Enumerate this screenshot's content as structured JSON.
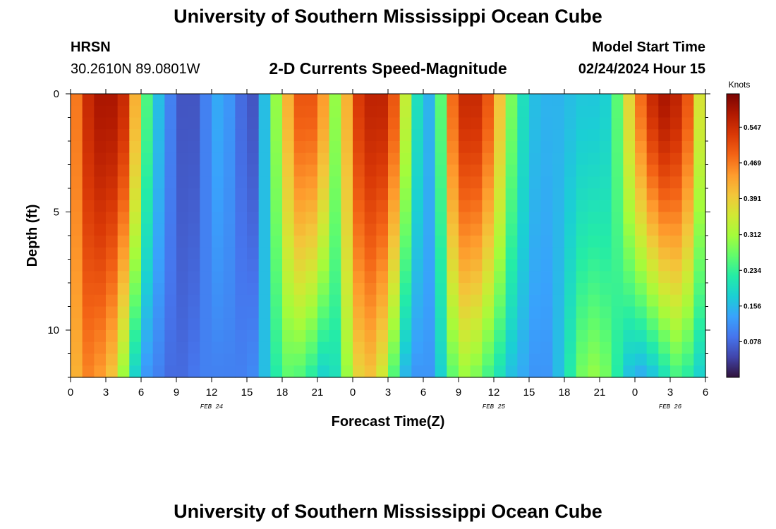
{
  "header": {
    "title": "University of Southern Mississippi Ocean Cube",
    "station": "HRSN",
    "coordinates": "30.2610N  89.0801W",
    "plot_title": "2-D Currents Speed-Magnitude",
    "model_label": "Model Start Time",
    "model_time": "02/24/2024 Hour 15"
  },
  "footer": {
    "title": "University of Southern Mississippi Ocean Cube"
  },
  "chart_data": {
    "type": "heatmap",
    "xlabel": "Forecast Time(Z)",
    "ylabel": "Depth (ft)",
    "x_tick_labels": [
      "0",
      "3",
      "6",
      "9",
      "12",
      "15",
      "18",
      "21",
      "0",
      "3",
      "6",
      "9",
      "12",
      "15",
      "18",
      "21",
      "0",
      "3",
      "6"
    ],
    "x_range_hours": [
      0,
      54
    ],
    "y_ticks": [
      0,
      5,
      10
    ],
    "y_range_ft": [
      0,
      12
    ],
    "date_labels": [
      {
        "text": "FEB 24",
        "hour": 12
      },
      {
        "text": "FEB 25",
        "hour": 36
      },
      {
        "text": "FEB 26",
        "hour": 51
      }
    ],
    "colorbar": {
      "label": "Knots",
      "ticks": [
        "0.547",
        "0.469",
        "0.391",
        "0.312",
        "0.234",
        "0.156",
        "0.078"
      ],
      "tick_values": [
        0.547,
        0.469,
        0.391,
        0.312,
        0.234,
        0.156,
        0.078
      ],
      "range": [
        0.0,
        0.62
      ],
      "colors": [
        "#30123b",
        "#4145ab",
        "#4675ed",
        "#39a2fc",
        "#1bcfd4",
        "#24eca6",
        "#61fc6c",
        "#a4fc3b",
        "#d1e834",
        "#f3c63a",
        "#fe9b2d",
        "#f36315",
        "#d93806",
        "#b11901",
        "#7a0403"
      ]
    },
    "time_hours": [
      0,
      1,
      2,
      3,
      4,
      5,
      6,
      7,
      8,
      9,
      10,
      11,
      12,
      13,
      14,
      15,
      16,
      17,
      18,
      19,
      20,
      21,
      22,
      23,
      24,
      25,
      26,
      27,
      28,
      29,
      30,
      31,
      32,
      33,
      34,
      35,
      36,
      37,
      38,
      39,
      40,
      41,
      42,
      43,
      44,
      45,
      46,
      47,
      48,
      49,
      50,
      51,
      52,
      53,
      54
    ],
    "surface_speed": [
      0.47,
      0.55,
      0.58,
      0.58,
      0.55,
      0.42,
      0.25,
      0.16,
      0.1,
      0.06,
      0.06,
      0.1,
      0.14,
      0.12,
      0.08,
      0.06,
      0.16,
      0.3,
      0.42,
      0.5,
      0.5,
      0.44,
      0.3,
      0.42,
      0.53,
      0.56,
      0.56,
      0.5,
      0.34,
      0.2,
      0.15,
      0.26,
      0.48,
      0.55,
      0.55,
      0.5,
      0.4,
      0.28,
      0.2,
      0.16,
      0.15,
      0.15,
      0.16,
      0.17,
      0.17,
      0.18,
      0.26,
      0.38,
      0.48,
      0.55,
      0.58,
      0.56,
      0.5,
      0.36,
      0.2
    ],
    "bottom_speed": [
      0.42,
      0.46,
      0.44,
      0.4,
      0.3,
      0.18,
      0.12,
      0.1,
      0.08,
      0.08,
      0.09,
      0.1,
      0.1,
      0.1,
      0.1,
      0.11,
      0.16,
      0.22,
      0.26,
      0.25,
      0.22,
      0.18,
      0.2,
      0.3,
      0.38,
      0.4,
      0.35,
      0.25,
      0.15,
      0.12,
      0.12,
      0.18,
      0.26,
      0.3,
      0.28,
      0.24,
      0.2,
      0.16,
      0.14,
      0.12,
      0.12,
      0.16,
      0.22,
      0.28,
      0.3,
      0.28,
      0.22,
      0.16,
      0.14,
      0.16,
      0.2,
      0.24,
      0.22,
      0.18,
      0.14
    ]
  }
}
